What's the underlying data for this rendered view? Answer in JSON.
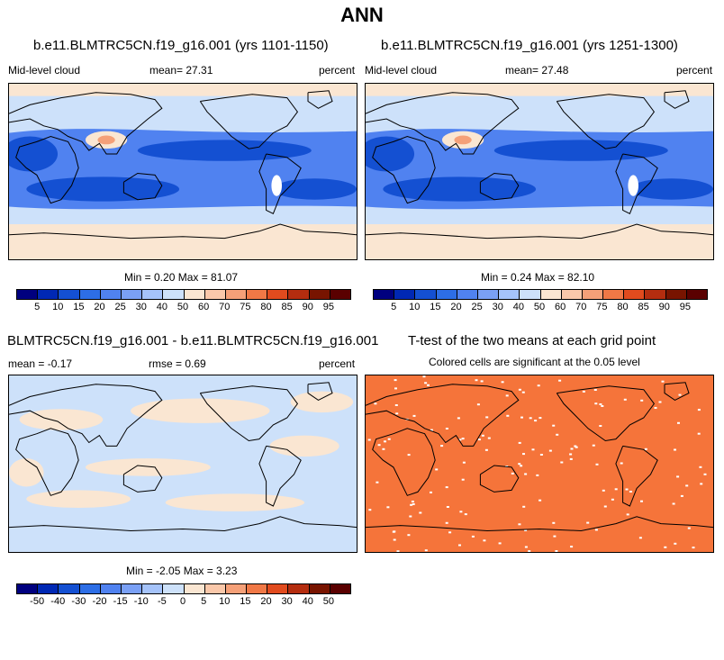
{
  "page": {
    "title": "ANN"
  },
  "panels": [
    {
      "title": "b.e11.BLMTRC5CN.f19_g16.001 (yrs 1101-1150)",
      "left_label": "Mid-level cloud",
      "mean_label": "mean=  27.31",
      "right_label": "percent",
      "stats_label": "Min =  0.20 Max =  81.07"
    },
    {
      "title": "b.e11.BLMTRC5CN.f19_g16.001 (yrs 1251-1300)",
      "left_label": "Mid-level cloud",
      "mean_label": "mean=  27.48",
      "right_label": "percent",
      "stats_label": "Min =  0.24 Max =  82.10"
    },
    {
      "title": "BLMTRC5CN.f19_g16.001 - b.e11.BLMTRC5CN.f19_g16.001",
      "left_label": "mean =  -0.17",
      "mean_label": "rmse =   0.69",
      "right_label": "percent",
      "stats_label": "Min =  -2.05 Max =   3.23"
    },
    {
      "title": "T-test of the two means at each grid point",
      "subtitle": "Colored cells are significant at the 0.05 level"
    }
  ],
  "chart_data": [
    {
      "type": "heatmap",
      "title": "b.e11.BLMTRC5CN.f19_g16.001 (yrs 1101-1150)",
      "variable": "Mid-level cloud",
      "units": "percent",
      "mean": 27.31,
      "min": 0.2,
      "max": 81.07,
      "colorbar_levels": [
        5,
        10,
        15,
        20,
        25,
        30,
        40,
        50,
        60,
        70,
        75,
        80,
        85,
        90,
        95
      ]
    },
    {
      "type": "heatmap",
      "title": "b.e11.BLMTRC5CN.f19_g16.001 (yrs 1251-1300)",
      "variable": "Mid-level cloud",
      "units": "percent",
      "mean": 27.48,
      "min": 0.24,
      "max": 82.1,
      "colorbar_levels": [
        5,
        10,
        15,
        20,
        25,
        30,
        40,
        50,
        60,
        70,
        75,
        80,
        85,
        90,
        95
      ]
    },
    {
      "type": "heatmap",
      "title": "BLMTRC5CN.f19_g16.001 - b.e11.BLMTRC5CN.f19_g16.001",
      "units": "percent",
      "mean": -0.17,
      "rmse": 0.69,
      "min": -2.05,
      "max": 3.23,
      "colorbar_levels": [
        -50,
        -40,
        -30,
        -20,
        -15,
        -10,
        -5,
        0,
        5,
        10,
        15,
        20,
        30,
        40,
        50
      ]
    },
    {
      "type": "heatmap",
      "title": "T-test of the two means at each grid point",
      "subtitle": "Colored cells are significant at the 0.05 level",
      "significance_level": 0.05
    }
  ],
  "colors": {
    "seq_colorbar": [
      "#00007f",
      "#0028b4",
      "#1450d2",
      "#2d6ee6",
      "#5082f0",
      "#7aa0f5",
      "#a5c3fa",
      "#cde1fa",
      "#fae6d2",
      "#fac8aa",
      "#f5a078",
      "#f07846",
      "#e14b1e",
      "#b42d0f",
      "#781400",
      "#5a0000"
    ],
    "div_colorbar": [
      "#00007f",
      "#0028b4",
      "#1450d2",
      "#2d6ee6",
      "#5082f0",
      "#7aa0f5",
      "#a5c3fa",
      "#cde1fa",
      "#fae6d2",
      "#fac8aa",
      "#f5a078",
      "#f07846",
      "#e14b1e",
      "#b42d0f",
      "#781400",
      "#5a0000"
    ],
    "map_light_blue": "#cde1fa",
    "map_mid_blue": "#5082f0",
    "map_dark_blue": "#1450d2",
    "map_peach": "#fae6d2",
    "significant_orange": "#f5743a"
  }
}
